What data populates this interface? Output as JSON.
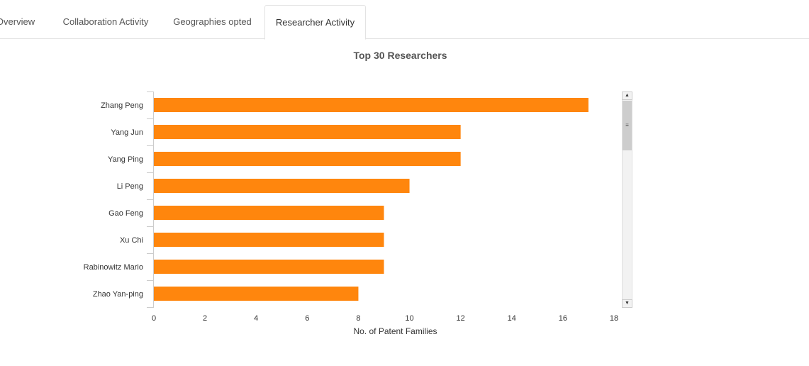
{
  "tabs": [
    {
      "label": "Overview",
      "active": false
    },
    {
      "label": "Collaboration Activity",
      "active": false
    },
    {
      "label": "Geographies opted",
      "active": false
    },
    {
      "label": "Researcher Activity",
      "active": true
    }
  ],
  "scrollbar": {
    "up_icon": "▲",
    "down_icon": "▼",
    "grip_icon": "≡"
  },
  "chart_data": {
    "type": "bar",
    "orientation": "horizontal",
    "title": "Top 30 Researchers",
    "xlabel": "No. of Patent Families",
    "ylabel": "",
    "categories": [
      "Zhang Peng",
      "Yang Jun",
      "Yang Ping",
      "Li Peng",
      "Gao Feng",
      "Xu Chi",
      "Rabinowitz Mario",
      "Zhao Yan-ping"
    ],
    "values": [
      17,
      12,
      12,
      10,
      9,
      9,
      9,
      8
    ],
    "xlim": [
      0,
      18
    ],
    "xticks": [
      0,
      2,
      4,
      6,
      8,
      10,
      12,
      14,
      16,
      18
    ],
    "bar_color": "#ff860d",
    "grid": false,
    "legend": "none"
  }
}
